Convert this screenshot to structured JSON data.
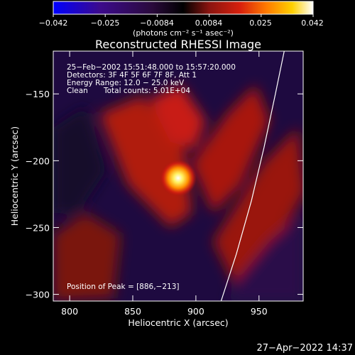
{
  "chart_data": {
    "type": "heatmap",
    "title": "Reconstructed RHESSI Image",
    "xlabel": "Heliocentric X (arcsec)",
    "ylabel": "Heliocentric Y (arcsec)",
    "xlim": [
      787,
      985
    ],
    "ylim": [
      -305,
      -118
    ],
    "xticks": [
      800,
      850,
      900,
      950
    ],
    "yticks": [
      -150,
      -200,
      -250,
      -300
    ],
    "colorbar": {
      "range": [
        -0.042,
        0.042
      ],
      "ticks": [
        "−0.042",
        "−0.025",
        "−0.0084",
        "0.0084",
        "0.025",
        "0.042"
      ],
      "unit_label": "(photons cm⁻² s⁻¹ asec⁻²)",
      "colormap": [
        "#0000ff",
        "#3c0a8c",
        "#2a0a3c",
        "#000000",
        "#8a1410",
        "#d8200c",
        "#ff7a00",
        "#ffd000",
        "#ffffff"
      ]
    },
    "info": {
      "line1": "25−Feb−2002 15:51:48.000 to 15:57:20.000",
      "line2": "Detectors: 3F 4F 5F 6F 7F 8F, Att 1",
      "line3": "Energy Range: 12.0 − 25.0 keV",
      "line4_a": "Clean",
      "line4_b": "Total counts: 5.01E+04",
      "peak": "Position of Peak = [886,−213]"
    },
    "peak": {
      "x": 886,
      "y": -213
    },
    "limb_curve": [
      [
        920,
        -305
      ],
      [
        932,
        -270
      ],
      [
        944,
        -230
      ],
      [
        954,
        -190
      ],
      [
        963,
        -150
      ],
      [
        970,
        -118
      ]
    ],
    "background_color": "#1e0a40"
  },
  "timestamp": "27−Apr−2022 14:37"
}
